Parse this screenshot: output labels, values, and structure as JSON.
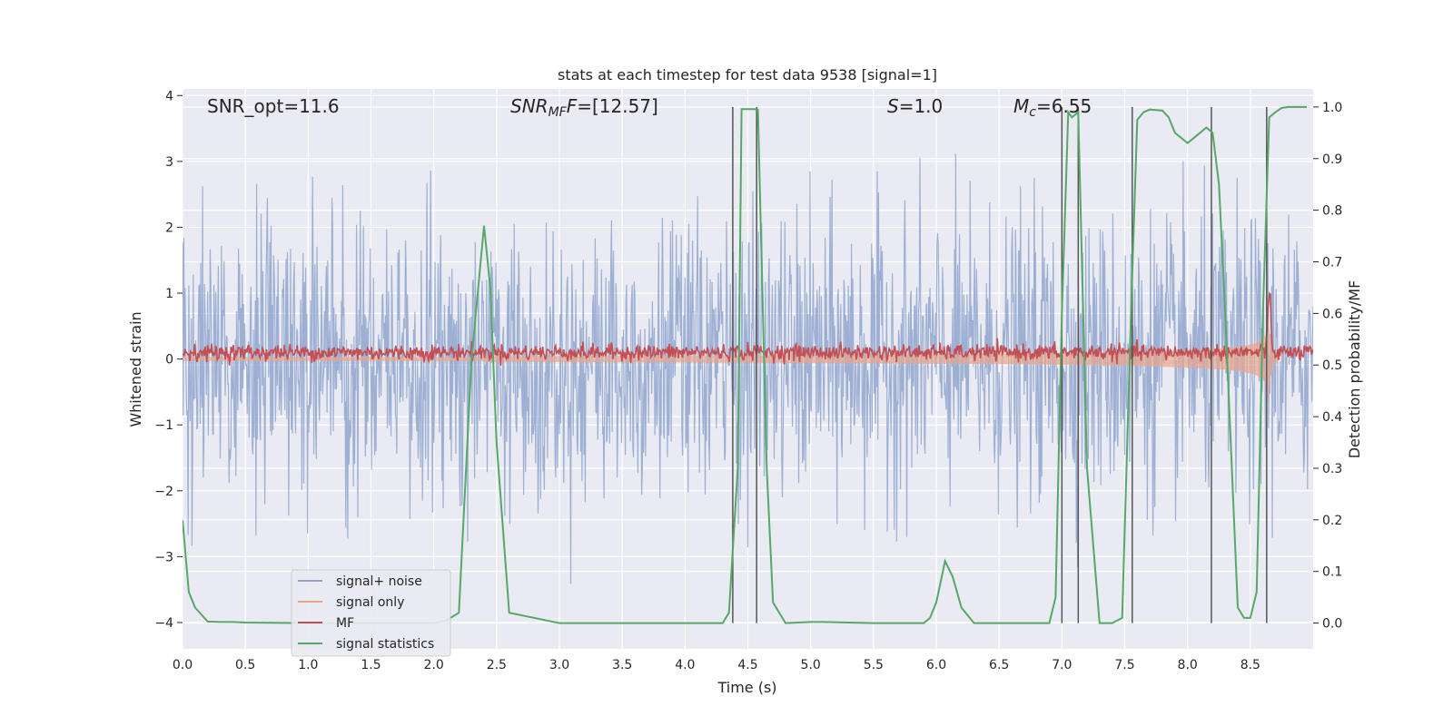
{
  "chart_data": {
    "type": "line",
    "title": "stats at each timestep for test data 9538 [signal=1]",
    "xlabel": "Time (s)",
    "ylabel": "Whitened strain",
    "y2label": "Detection probability/MF",
    "xlim": [
      0,
      9
    ],
    "ylim": [
      -4.4,
      4.1
    ],
    "y2lim": [
      -0.05,
      1.035
    ],
    "xticks": [
      "0.0",
      "0.5",
      "1.0",
      "1.5",
      "2.0",
      "2.5",
      "3.0",
      "3.5",
      "4.0",
      "4.5",
      "5.0",
      "5.5",
      "6.0",
      "6.5",
      "7.0",
      "7.5",
      "8.0",
      "8.5"
    ],
    "yticks": [
      "4",
      "3",
      "2",
      "1",
      "0",
      "−1",
      "−2",
      "−3",
      "−4"
    ],
    "y2ticks": [
      "1.0",
      "0.9",
      "0.8",
      "0.7",
      "0.6",
      "0.5",
      "0.4",
      "0.3",
      "0.2",
      "0.1",
      "0.0"
    ],
    "grid": true,
    "legend_position": "lower-left",
    "annotations": {
      "snr_opt": "SNR_opt=11.6",
      "snr_mf_main": "SNR",
      "snr_mf_sub": "MF",
      "snr_mf_rest": "=[12.57]",
      "s_main": "S",
      "s_rest": "=1.0",
      "mc_main": "M",
      "mc_sub": "c",
      "mc_rest": "=6.55"
    },
    "series": [
      {
        "name": "signal+ noise",
        "color": "#8fa6cf",
        "description": "whitened noisy strain, roughly Gaussian, typical range ±2, extremes near ±3.7",
        "approx_range": [
          -3.8,
          3.7
        ]
      },
      {
        "name": "signal only",
        "color": "#e8a58b",
        "chirp_start": 2.4,
        "chirp_peak_time": 8.63,
        "peak_amplitude": 1.0
      },
      {
        "name": "MF",
        "color": "#c44e52",
        "baseline": 0.1,
        "spike_time": 8.65,
        "spike_value": 1.0
      },
      {
        "name": "signal statistics",
        "color": "#55a868",
        "x": [
          0.0,
          0.05,
          0.1,
          0.2,
          0.3,
          0.4,
          0.5,
          1.0,
          1.5,
          2.0,
          2.1,
          2.2,
          2.3,
          2.4,
          2.45,
          2.5,
          2.6,
          3.0,
          3.5,
          4.0,
          4.3,
          4.35,
          4.42,
          4.45,
          4.55,
          4.58,
          4.62,
          4.65,
          4.7,
          4.8,
          5.0,
          5.1,
          5.5,
          5.9,
          5.95,
          6.0,
          6.07,
          6.13,
          6.2,
          6.3,
          6.5,
          6.9,
          6.95,
          7.0,
          7.05,
          7.08,
          7.13,
          7.2,
          7.3,
          7.4,
          7.48,
          7.55,
          7.6,
          7.65,
          7.7,
          7.8,
          7.85,
          7.9,
          8.0,
          8.1,
          8.15,
          8.2,
          8.25,
          8.3,
          8.4,
          8.45,
          8.5,
          8.55,
          8.6,
          8.65,
          8.7,
          8.75,
          8.8,
          8.85,
          8.95
        ],
        "y": [
          0.2,
          0.06,
          0.03,
          0.003,
          0.002,
          0.002,
          0.001,
          0.0,
          0.0,
          0.0,
          0.005,
          0.02,
          0.51,
          0.77,
          0.65,
          0.35,
          0.02,
          0.0,
          0.0,
          0.0,
          0.0,
          0.02,
          0.3,
          0.996,
          0.996,
          0.995,
          0.6,
          0.3,
          0.04,
          0.0,
          0.002,
          0.002,
          0.0,
          0.0,
          0.01,
          0.04,
          0.12,
          0.09,
          0.03,
          0.0,
          0.0,
          0.0,
          0.05,
          0.6,
          0.99,
          0.98,
          0.99,
          0.3,
          0.0,
          0.0,
          0.01,
          0.6,
          0.975,
          0.99,
          0.995,
          0.993,
          0.98,
          0.95,
          0.93,
          0.95,
          0.96,
          0.95,
          0.85,
          0.6,
          0.03,
          0.01,
          0.01,
          0.06,
          0.6,
          0.98,
          0.99,
          0.998,
          1.0,
          1.0,
          1.0
        ]
      }
    ],
    "vertical_lines": {
      "color": "#555555",
      "x": [
        4.38,
        4.57,
        7.0,
        7.13,
        7.56,
        8.19,
        8.63
      ],
      "y2_top": 1.0,
      "y2_bottom": 0.0
    }
  }
}
